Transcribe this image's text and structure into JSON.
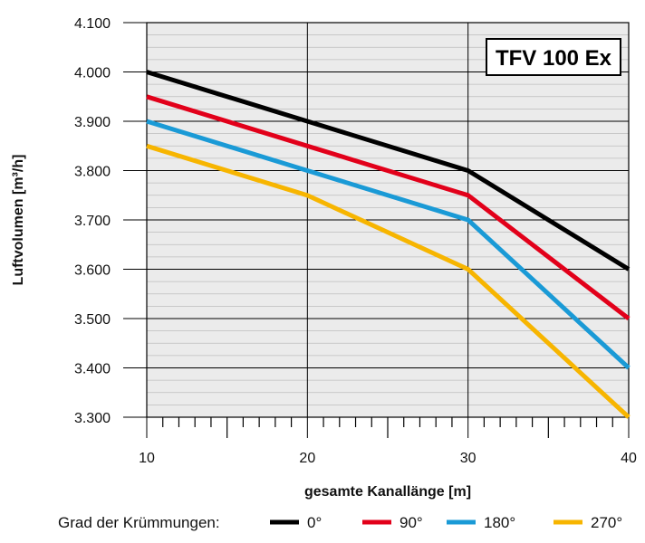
{
  "chart_data": {
    "type": "line",
    "title": "TFV 100 Ex",
    "xlabel": "gesamte Kanallänge [m]",
    "ylabel": "Luftvolumen [m³/h]",
    "x": [
      10,
      20,
      30,
      40
    ],
    "xlim": [
      10,
      40
    ],
    "ylim": [
      3300,
      4100
    ],
    "x_ticks": [
      "10",
      "20",
      "30",
      "40"
    ],
    "y_ticks": [
      "3.300",
      "3.400",
      "3.500",
      "3.600",
      "3.700",
      "3.800",
      "3.900",
      "4.000",
      "4.100"
    ],
    "legend_title": "Grad der Krümmungen:",
    "legend_position": "bottom",
    "grid": true,
    "plot_background": "#ebebeb",
    "series": [
      {
        "name": "0°",
        "color": "#000000",
        "values": [
          4000,
          3900,
          3800,
          3600
        ]
      },
      {
        "name": "90°",
        "color": "#e2001a",
        "values": [
          3950,
          3850,
          3750,
          3500
        ]
      },
      {
        "name": "180°",
        "color": "#1a9ad6",
        "values": [
          3900,
          3800,
          3700,
          3400
        ]
      },
      {
        "name": "270°",
        "color": "#f7b500",
        "values": [
          3850,
          3750,
          3600,
          3300
        ]
      }
    ]
  }
}
